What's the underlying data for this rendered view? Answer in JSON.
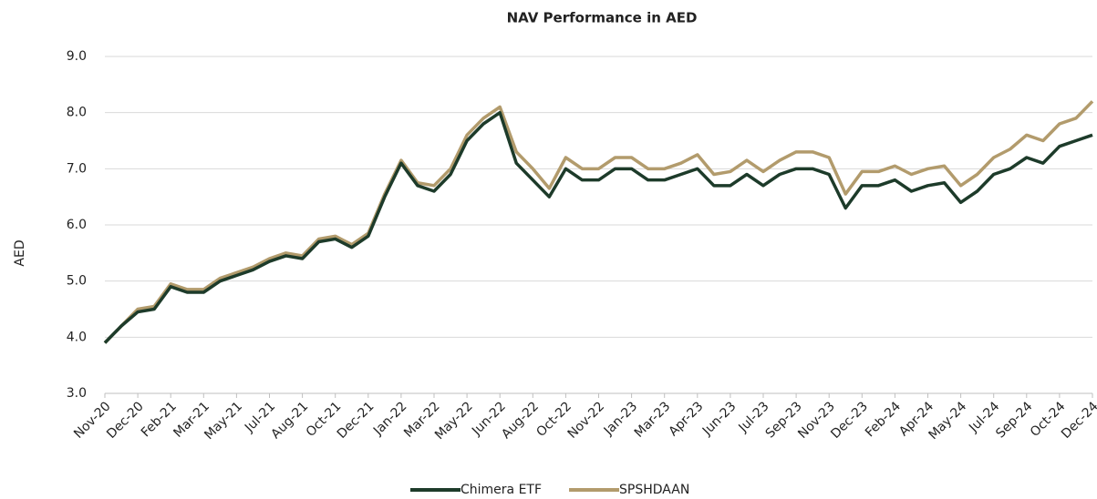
{
  "chart_data": {
    "type": "line",
    "title": "NAV Performance in AED",
    "y_label": "AED",
    "categories": [
      "Nov-20",
      null,
      "Dec-20",
      null,
      "Feb-21",
      null,
      "Mar-21",
      null,
      "May-21",
      null,
      "Jul-21",
      null,
      "Aug-21",
      null,
      "Oct-21",
      null,
      "Dec-21",
      null,
      "Jan-22",
      null,
      "Mar-22",
      null,
      "May-22",
      null,
      "Jun-22",
      null,
      "Aug-22",
      null,
      "Oct-22",
      null,
      "Nov-22",
      null,
      "Jan-23",
      null,
      "Mar-23",
      null,
      "Apr-23",
      null,
      "Jun-23",
      null,
      "Jul-23",
      null,
      "Sep-23",
      null,
      "Nov-23",
      null,
      "Dec-23",
      null,
      "Feb-24",
      null,
      "Apr-24",
      null,
      "May-24",
      null,
      "Jul-24",
      null,
      "Sep-24",
      null,
      "Oct-24",
      null,
      "Dec-24"
    ],
    "series": [
      {
        "name": "Chimera ETF",
        "color": "#1d3b2a",
        "values": [
          3.9,
          4.2,
          4.45,
          4.5,
          4.9,
          4.8,
          4.8,
          5.0,
          5.1,
          5.2,
          5.35,
          5.45,
          5.4,
          5.7,
          5.75,
          5.6,
          5.8,
          6.5,
          7.1,
          6.7,
          6.6,
          6.9,
          7.5,
          7.8,
          8.0,
          7.1,
          6.8,
          6.5,
          7.0,
          6.8,
          6.8,
          7.0,
          7.0,
          6.8,
          6.8,
          6.9,
          7.0,
          6.7,
          6.7,
          6.9,
          6.7,
          6.9,
          7.0,
          7.0,
          6.9,
          6.3,
          6.7,
          6.7,
          6.8,
          6.6,
          6.7,
          6.75,
          6.4,
          6.6,
          6.9,
          7.0,
          7.2,
          7.1,
          7.4,
          7.5,
          7.6
        ]
      },
      {
        "name": "SPSHDAAN",
        "color": "#b29b6c",
        "values": [
          3.9,
          4.2,
          4.5,
          4.55,
          4.95,
          4.85,
          4.85,
          5.05,
          5.15,
          5.25,
          5.4,
          5.5,
          5.45,
          5.75,
          5.8,
          5.65,
          5.85,
          6.55,
          7.15,
          6.75,
          6.7,
          7.0,
          7.6,
          7.9,
          8.1,
          7.3,
          7.0,
          6.65,
          7.2,
          7.0,
          7.0,
          7.2,
          7.2,
          7.0,
          7.0,
          7.1,
          7.25,
          6.9,
          6.95,
          7.15,
          6.95,
          7.15,
          7.3,
          7.3,
          7.2,
          6.55,
          6.95,
          6.95,
          7.05,
          6.9,
          7.0,
          7.05,
          6.7,
          6.9,
          7.2,
          7.35,
          7.6,
          7.5,
          7.8,
          7.9,
          8.2
        ]
      }
    ],
    "ylim": [
      3,
      9
    ],
    "yticks": [
      {
        "value": 3,
        "label": "3.0"
      },
      {
        "value": 4,
        "label": "4.0"
      },
      {
        "value": 5,
        "label": "5.0"
      },
      {
        "value": 6,
        "label": "6.0"
      },
      {
        "value": 7,
        "label": "7.0"
      },
      {
        "value": 8,
        "label": "8.0"
      },
      {
        "value": 9,
        "label": "9.0"
      }
    ],
    "grid": true,
    "legend": "bottom"
  }
}
